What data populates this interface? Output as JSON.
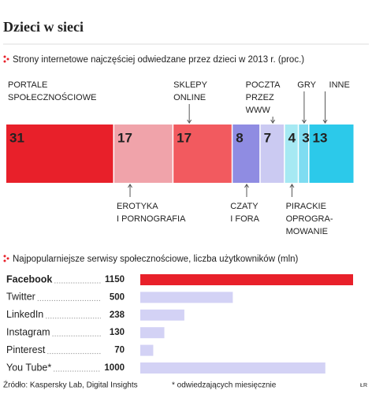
{
  "title": "Dzieci w sieci",
  "footer": {
    "source": "Źródło: Kaspersky Lab, Digital Insights",
    "note": "* odwiedzających miesięcznie",
    "credit": "ŁR"
  },
  "chart_data": [
    {
      "type": "stacked-share",
      "title": "Strony internetowe najczęściej odwiedzane przez dzieci w 2013 r. (proc.)",
      "categories": [
        "PORTALE\nSPOŁECZNOŚCIOWE",
        "EROTYKA\nI PORNOGRAFIA",
        "SKLEPY\nONLINE",
        "CZATY\nI FORA",
        "POCZTA\nPRZEZ\nWWW",
        "PIRACKIE\nOPROGRA-\nMOWANIE",
        "GRY",
        "INNE"
      ],
      "values": [
        31,
        17,
        17,
        8,
        7,
        4,
        3,
        13
      ],
      "colors": [
        "#e8202a",
        "#f0a3aa",
        "#f25a5f",
        "#8f8ce2",
        "#cbcaf2",
        "#a6e9f3",
        "#7edcf1",
        "#2cc9ea"
      ],
      "value_colors": [
        "#ffffff",
        "#f7d5d8",
        "#ffffff",
        "#ffffff",
        "#ffffff",
        "#ffffff",
        "#ffffff",
        "#ffffff"
      ]
    },
    {
      "type": "hbar",
      "title": "Najpopularniejsze serwisy społecznościowe, liczba użytkowników (mln)",
      "categories": [
        "Facebook",
        "Twitter",
        "LinkedIn",
        "Instagram",
        "Pinterest",
        "You Tube*"
      ],
      "values": [
        1150,
        500,
        238,
        130,
        70,
        1000
      ],
      "colors": [
        "#e8202a",
        "#d3d2f5",
        "#d3d2f5",
        "#d3d2f5",
        "#d3d2f5",
        "#d3d2f5"
      ],
      "highlight": "Facebook"
    }
  ]
}
